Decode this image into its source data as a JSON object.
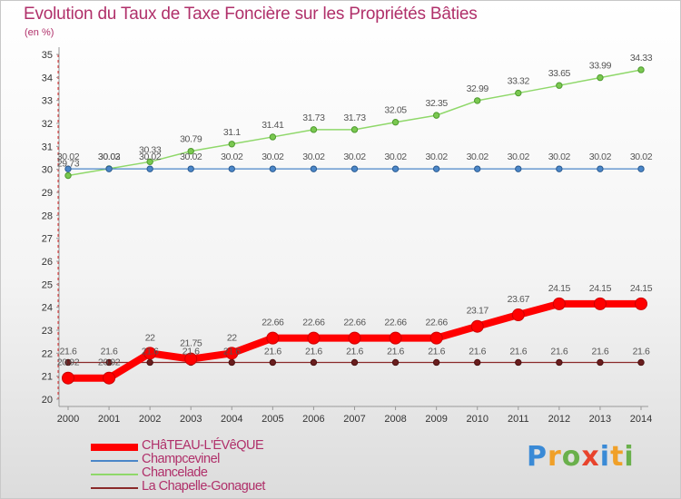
{
  "title": "Evolution du Taux de Taxe Foncière sur les Propriétés Bâties",
  "unit_label": "(en %)",
  "logo": "Proxiti",
  "chart_data": {
    "type": "line",
    "x": [
      2000,
      2001,
      2002,
      2003,
      2004,
      2005,
      2006,
      2007,
      2008,
      2009,
      2010,
      2011,
      2012,
      2013,
      2014
    ],
    "ylim": [
      20,
      35
    ],
    "yticks": [
      20,
      21,
      22,
      23,
      24,
      25,
      26,
      27,
      28,
      29,
      30,
      31,
      32,
      33,
      34,
      35
    ],
    "grid": false,
    "legend_position": "bottom-left",
    "series": [
      {
        "name": "Chancelade",
        "color": "#8fd86a",
        "values": [
          29.73,
          30.03,
          30.33,
          30.79,
          31.1,
          31.41,
          31.73,
          31.73,
          32.05,
          32.35,
          32.99,
          33.32,
          33.65,
          33.99,
          34.33
        ],
        "labels": [
          "29.73",
          "30.03",
          "30.33",
          "30.79",
          "31.1",
          "31.41",
          "31.73",
          "31.73",
          "32.05",
          "32.35",
          "32.99",
          "33.32",
          "33.65",
          "33.99",
          "34.33"
        ]
      },
      {
        "name": "Champcevinel",
        "color": "#4a86c8",
        "values": [
          30.02,
          30.02,
          30.02,
          30.02,
          30.02,
          30.02,
          30.02,
          30.02,
          30.02,
          30.02,
          30.02,
          30.02,
          30.02,
          30.02,
          30.02
        ],
        "labels": [
          "30.02",
          "30.02",
          "30.02",
          "30.02",
          "30.02",
          "30.02",
          "30.02",
          "30.02",
          "30.02",
          "30.02",
          "30.02",
          "30.02",
          "30.02",
          "30.02",
          "30.02"
        ]
      },
      {
        "name": "La Chapelle-Gonaguet",
        "color": "#8a2a2a",
        "values": [
          21.6,
          21.6,
          21.6,
          21.6,
          21.6,
          21.6,
          21.6,
          21.6,
          21.6,
          21.6,
          21.6,
          21.6,
          21.6,
          21.6,
          21.6
        ],
        "labels": [
          "21.6",
          "21.6",
          "21.6",
          "21.6",
          "21.6",
          "21.6",
          "21.6",
          "21.6",
          "21.6",
          "21.6",
          "21.6",
          "21.6",
          "21.6",
          "21.6",
          "21.6"
        ]
      },
      {
        "name": "CHâTEAU-L'ÉVêQUE",
        "color": "#ff0000",
        "values": [
          20.92,
          20.92,
          22,
          21.75,
          22,
          22.66,
          22.66,
          22.66,
          22.66,
          22.66,
          23.17,
          23.67,
          24.15,
          24.15,
          24.15
        ],
        "labels": [
          "20.92",
          "20.92",
          "22",
          "21.75",
          "22",
          "22.66",
          "22.66",
          "22.66",
          "22.66",
          "22.66",
          "23.17",
          "23.67",
          "24.15",
          "24.15",
          "24.15"
        ]
      }
    ]
  }
}
